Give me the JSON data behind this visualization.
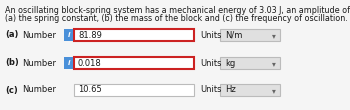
{
  "description_line1": "An oscillating block-spring system has a mechanical energy of 3.03 J, an amplitude of 7.40 cm, and a maximum speed of 4.95 m/s. Find",
  "description_line2": "(a) the spring constant, (b) the mass of the block and (c) the frequency of oscillation.",
  "rows": [
    {
      "label": "(a)",
      "value": "81.89",
      "units": "N/m",
      "has_info": true,
      "info_red": true
    },
    {
      "label": "(b)",
      "value": "0.018",
      "units": "kg",
      "has_info": true,
      "info_red": true
    },
    {
      "label": "(c)",
      "value": "10.65",
      "units": "Hz",
      "has_info": false,
      "info_red": false
    }
  ],
  "number_label": "Number",
  "units_label": "Units",
  "bg_color": "#f5f5f5",
  "text_color": "#1a1a1a",
  "info_bg": "#4a90d9",
  "box_border_red": "#cc2222",
  "box_border_gray": "#bbbbbb",
  "input_box_bg": "#ffffff",
  "units_box_bg": "#e0e0e0",
  "font_size_desc": 5.8,
  "font_size_row": 6.0,
  "fig_width": 3.5,
  "fig_height": 1.1,
  "dpi": 100
}
